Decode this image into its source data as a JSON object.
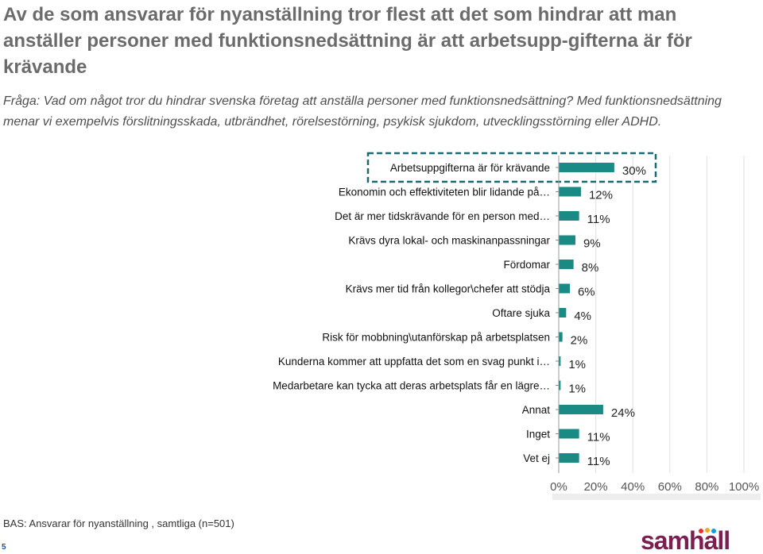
{
  "header": {
    "title": "Av de som ansvarar för nyanställning tror flest att det som hindrar att man anställer personer med funktionsnedsättning är att arbetsupp-gifterna är för krävande",
    "question": "Fråga: Vad om något tror du hindrar svenska företag att anställa personer med funktionsnedsättning? Med funktionsnedsättning menar vi exempelvis förslitningsskada, utbrändhet, rörelsestörning, psykisk sjukdom, utvecklingsstörning eller ADHD."
  },
  "chart_data": {
    "type": "bar",
    "orientation": "horizontal",
    "categories": [
      "Arbetsuppgifterna är för krävande",
      "Ekonomin och effektiviteten blir lidande på…",
      "Det är mer tidskrävande för en person med…",
      "Krävs dyra lokal- och maskinanpassningar",
      "Fördomar",
      "Krävs mer tid från kollegor\\chefer att stödja",
      "Oftare sjuka",
      "Risk för mobbning\\utanförskap på arbetsplatsen",
      "Kunderna kommer att uppfatta det som en svag punkt i…",
      "Medarbetare kan tycka att deras arbetsplats får en lägre…",
      "Annat",
      "Inget",
      "Vet ej"
    ],
    "values": [
      30,
      12,
      11,
      9,
      8,
      6,
      4,
      2,
      1,
      1,
      24,
      11,
      11
    ],
    "value_labels": [
      "30%",
      "12%",
      "11%",
      "9%",
      "8%",
      "6%",
      "4%",
      "2%",
      "1%",
      "1%",
      "24%",
      "11%",
      "11%"
    ],
    "xlim": [
      0,
      100
    ],
    "xticks": [
      "0%",
      "20%",
      "40%",
      "60%",
      "80%",
      "100%"
    ],
    "highlighted_category": "Arbetsuppgifterna är för krävande",
    "bar_color": "#1a8a84",
    "grid": true
  },
  "footer": {
    "base": "BAS: Ansvarar för nyanställning , samtliga (n=501)",
    "page_number": "5",
    "logo_text": "samhall"
  }
}
